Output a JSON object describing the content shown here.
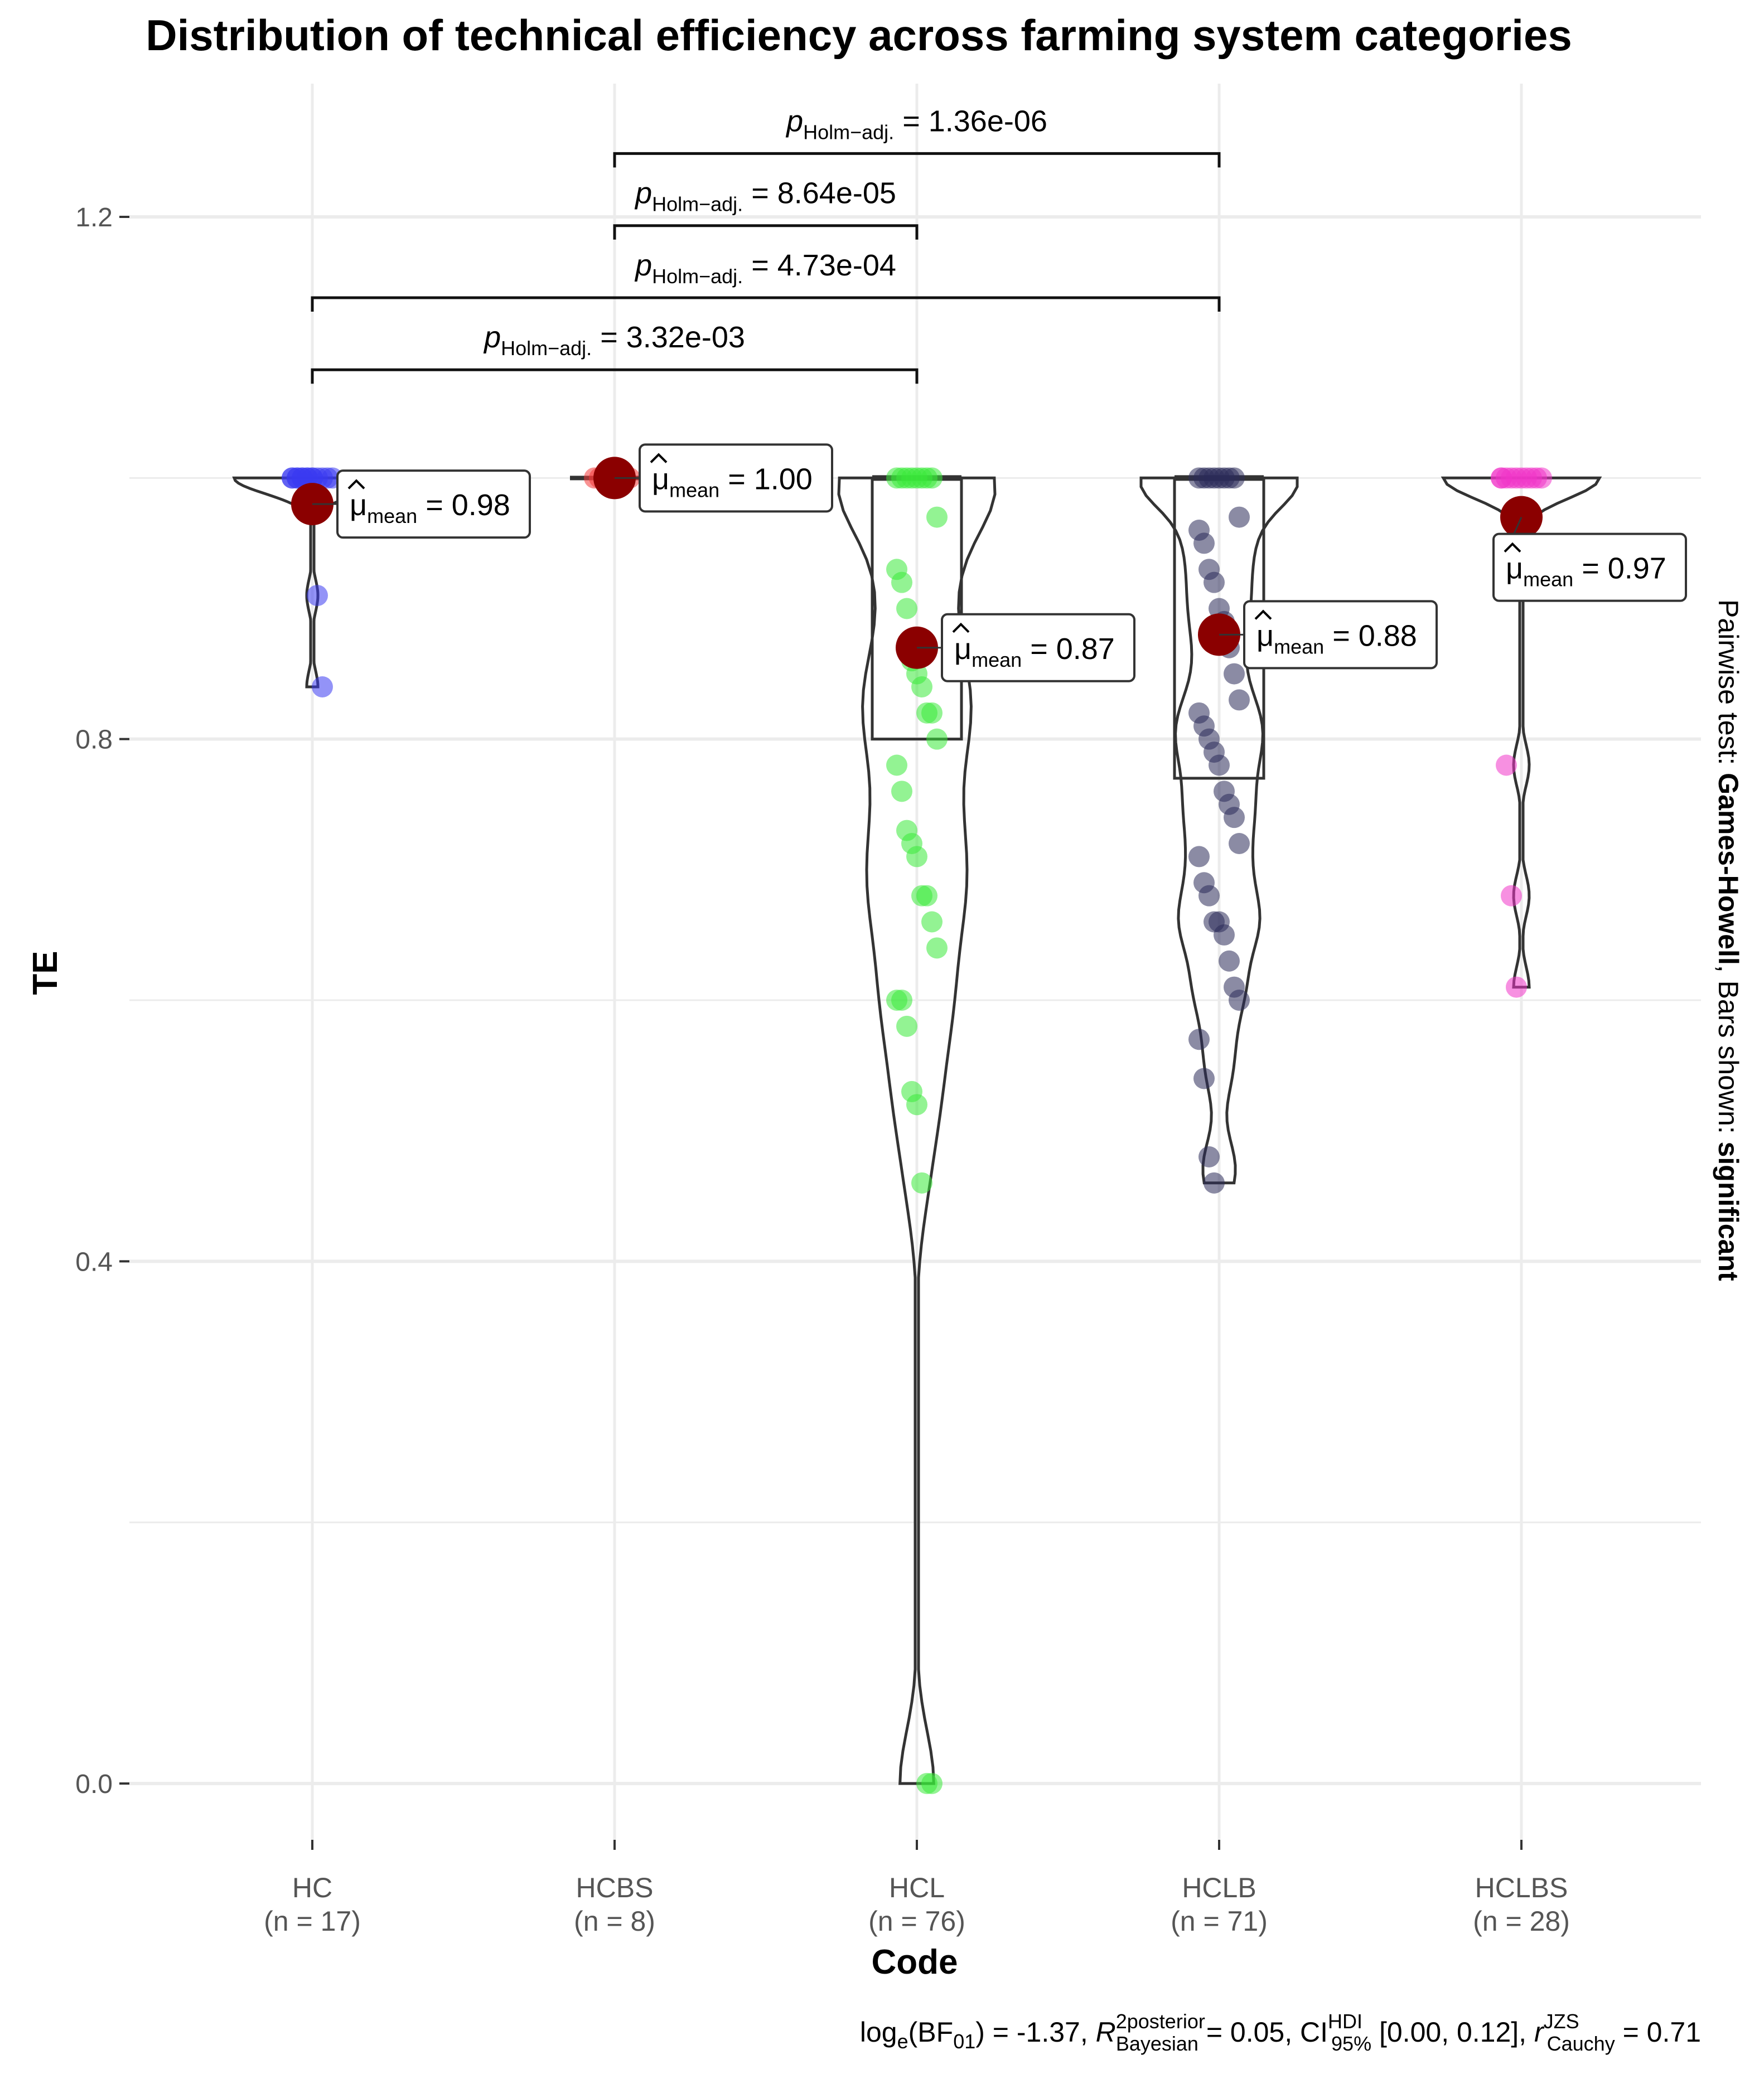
{
  "chart_data": {
    "type": "violin-box-scatter",
    "title": "Distribution of technical efficiency across farming system categories",
    "xlabel": "Code",
    "ylabel": "TE",
    "ylim": [
      -0.1,
      1.3
    ],
    "yticks": [
      0.0,
      0.4,
      0.8,
      1.2
    ],
    "ytick_labels": [
      "0.0",
      "0.4",
      "0.8",
      "1.2"
    ],
    "grid": true,
    "groups": [
      {
        "code": "HC",
        "n_label": "(n = 17)",
        "color": "#3A3AF0",
        "mean": 0.98,
        "mean_label": "0.98",
        "box": null,
        "points": [
          1.0,
          1.0,
          1.0,
          1.0,
          1.0,
          1.0,
          1.0,
          1.0,
          1.0,
          1.0,
          1.0,
          1.0,
          1.0,
          1.0,
          0.91,
          0.84
        ]
      },
      {
        "code": "HCBS",
        "n_label": "(n = 8)",
        "color": "#F43A3A",
        "mean": 1.0,
        "mean_label": "1.00",
        "box": null,
        "points": [
          1.0,
          1.0,
          1.0,
          1.0,
          1.0,
          1.0,
          1.0,
          1.0
        ]
      },
      {
        "code": "HCL",
        "n_label": "(n = 76)",
        "color": "#3AEA3A",
        "mean": 0.87,
        "mean_label": "0.87",
        "box": {
          "q1": 0.8,
          "median": 1.0,
          "q3": 1.0
        },
        "points": [
          1.0,
          1.0,
          1.0,
          1.0,
          1.0,
          1.0,
          1.0,
          1.0,
          0.97,
          0.93,
          0.92,
          0.9,
          0.86,
          0.85,
          0.84,
          0.82,
          0.82,
          0.8,
          0.78,
          0.76,
          0.73,
          0.72,
          0.71,
          0.68,
          0.68,
          0.66,
          0.64,
          0.6,
          0.6,
          0.58,
          0.53,
          0.52,
          0.46,
          0.0,
          0.0
        ]
      },
      {
        "code": "HCLB",
        "n_label": "(n = 71)",
        "color": "#2B2B5A",
        "mean": 0.88,
        "mean_label": "0.88",
        "box": {
          "q1": 0.77,
          "median": 1.0,
          "q3": 1.0
        },
        "points": [
          1.0,
          1.0,
          1.0,
          1.0,
          1.0,
          1.0,
          1.0,
          1.0,
          0.97,
          0.96,
          0.95,
          0.93,
          0.92,
          0.9,
          0.89,
          0.87,
          0.85,
          0.83,
          0.82,
          0.81,
          0.8,
          0.79,
          0.78,
          0.76,
          0.75,
          0.74,
          0.72,
          0.71,
          0.69,
          0.68,
          0.66,
          0.66,
          0.65,
          0.63,
          0.61,
          0.6,
          0.57,
          0.54,
          0.48,
          0.46
        ]
      },
      {
        "code": "HCLBS",
        "n_label": "(n = 28)",
        "color": "#F035C8",
        "mean": 0.97,
        "mean_label": "0.97",
        "box": null,
        "points": [
          1.0,
          1.0,
          1.0,
          1.0,
          1.0,
          1.0,
          1.0,
          1.0,
          1.0,
          1.0,
          0.78,
          0.68,
          0.61
        ]
      }
    ],
    "pairwise": [
      {
        "from": "HCBS",
        "to": "HCLB",
        "p_value": "1.36e-06"
      },
      {
        "from": "HCBS",
        "to": "HCL",
        "p_value": "8.64e-05"
      },
      {
        "from": "HC",
        "to": "HCLB",
        "p_value": "4.73e-04"
      },
      {
        "from": "HC",
        "to": "HCL",
        "p_value": "3.32e-03"
      }
    ],
    "p_label_main": "p",
    "p_label_sub": "Holm−adj.",
    "mean_symbol": "μ",
    "mean_sub": "mean",
    "side_text": {
      "prefix": "Pairwise test: ",
      "test": "Games-Howell",
      "middle": ", Bars shown: ",
      "shown": "significant"
    },
    "caption": {
      "bf": "log",
      "bf_e": "e",
      "bf_rest": "(BF",
      "bf_sub": "01",
      "bf_val": ") = -1.37, ",
      "r2": "R",
      "r2_sup": "2",
      "r2_posterior": "posterior",
      "r2_bayesian": "Bayesian",
      "r2_val": " = 0.05, CI",
      "ci_hdi": "HDI",
      "ci_95": "95%",
      "ci_val": " [0.00, 0.12], ",
      "r": "r",
      "r_jzs": "JZS",
      "r_cauchy": "Cauchy",
      "r_val": " = 0.71"
    }
  }
}
